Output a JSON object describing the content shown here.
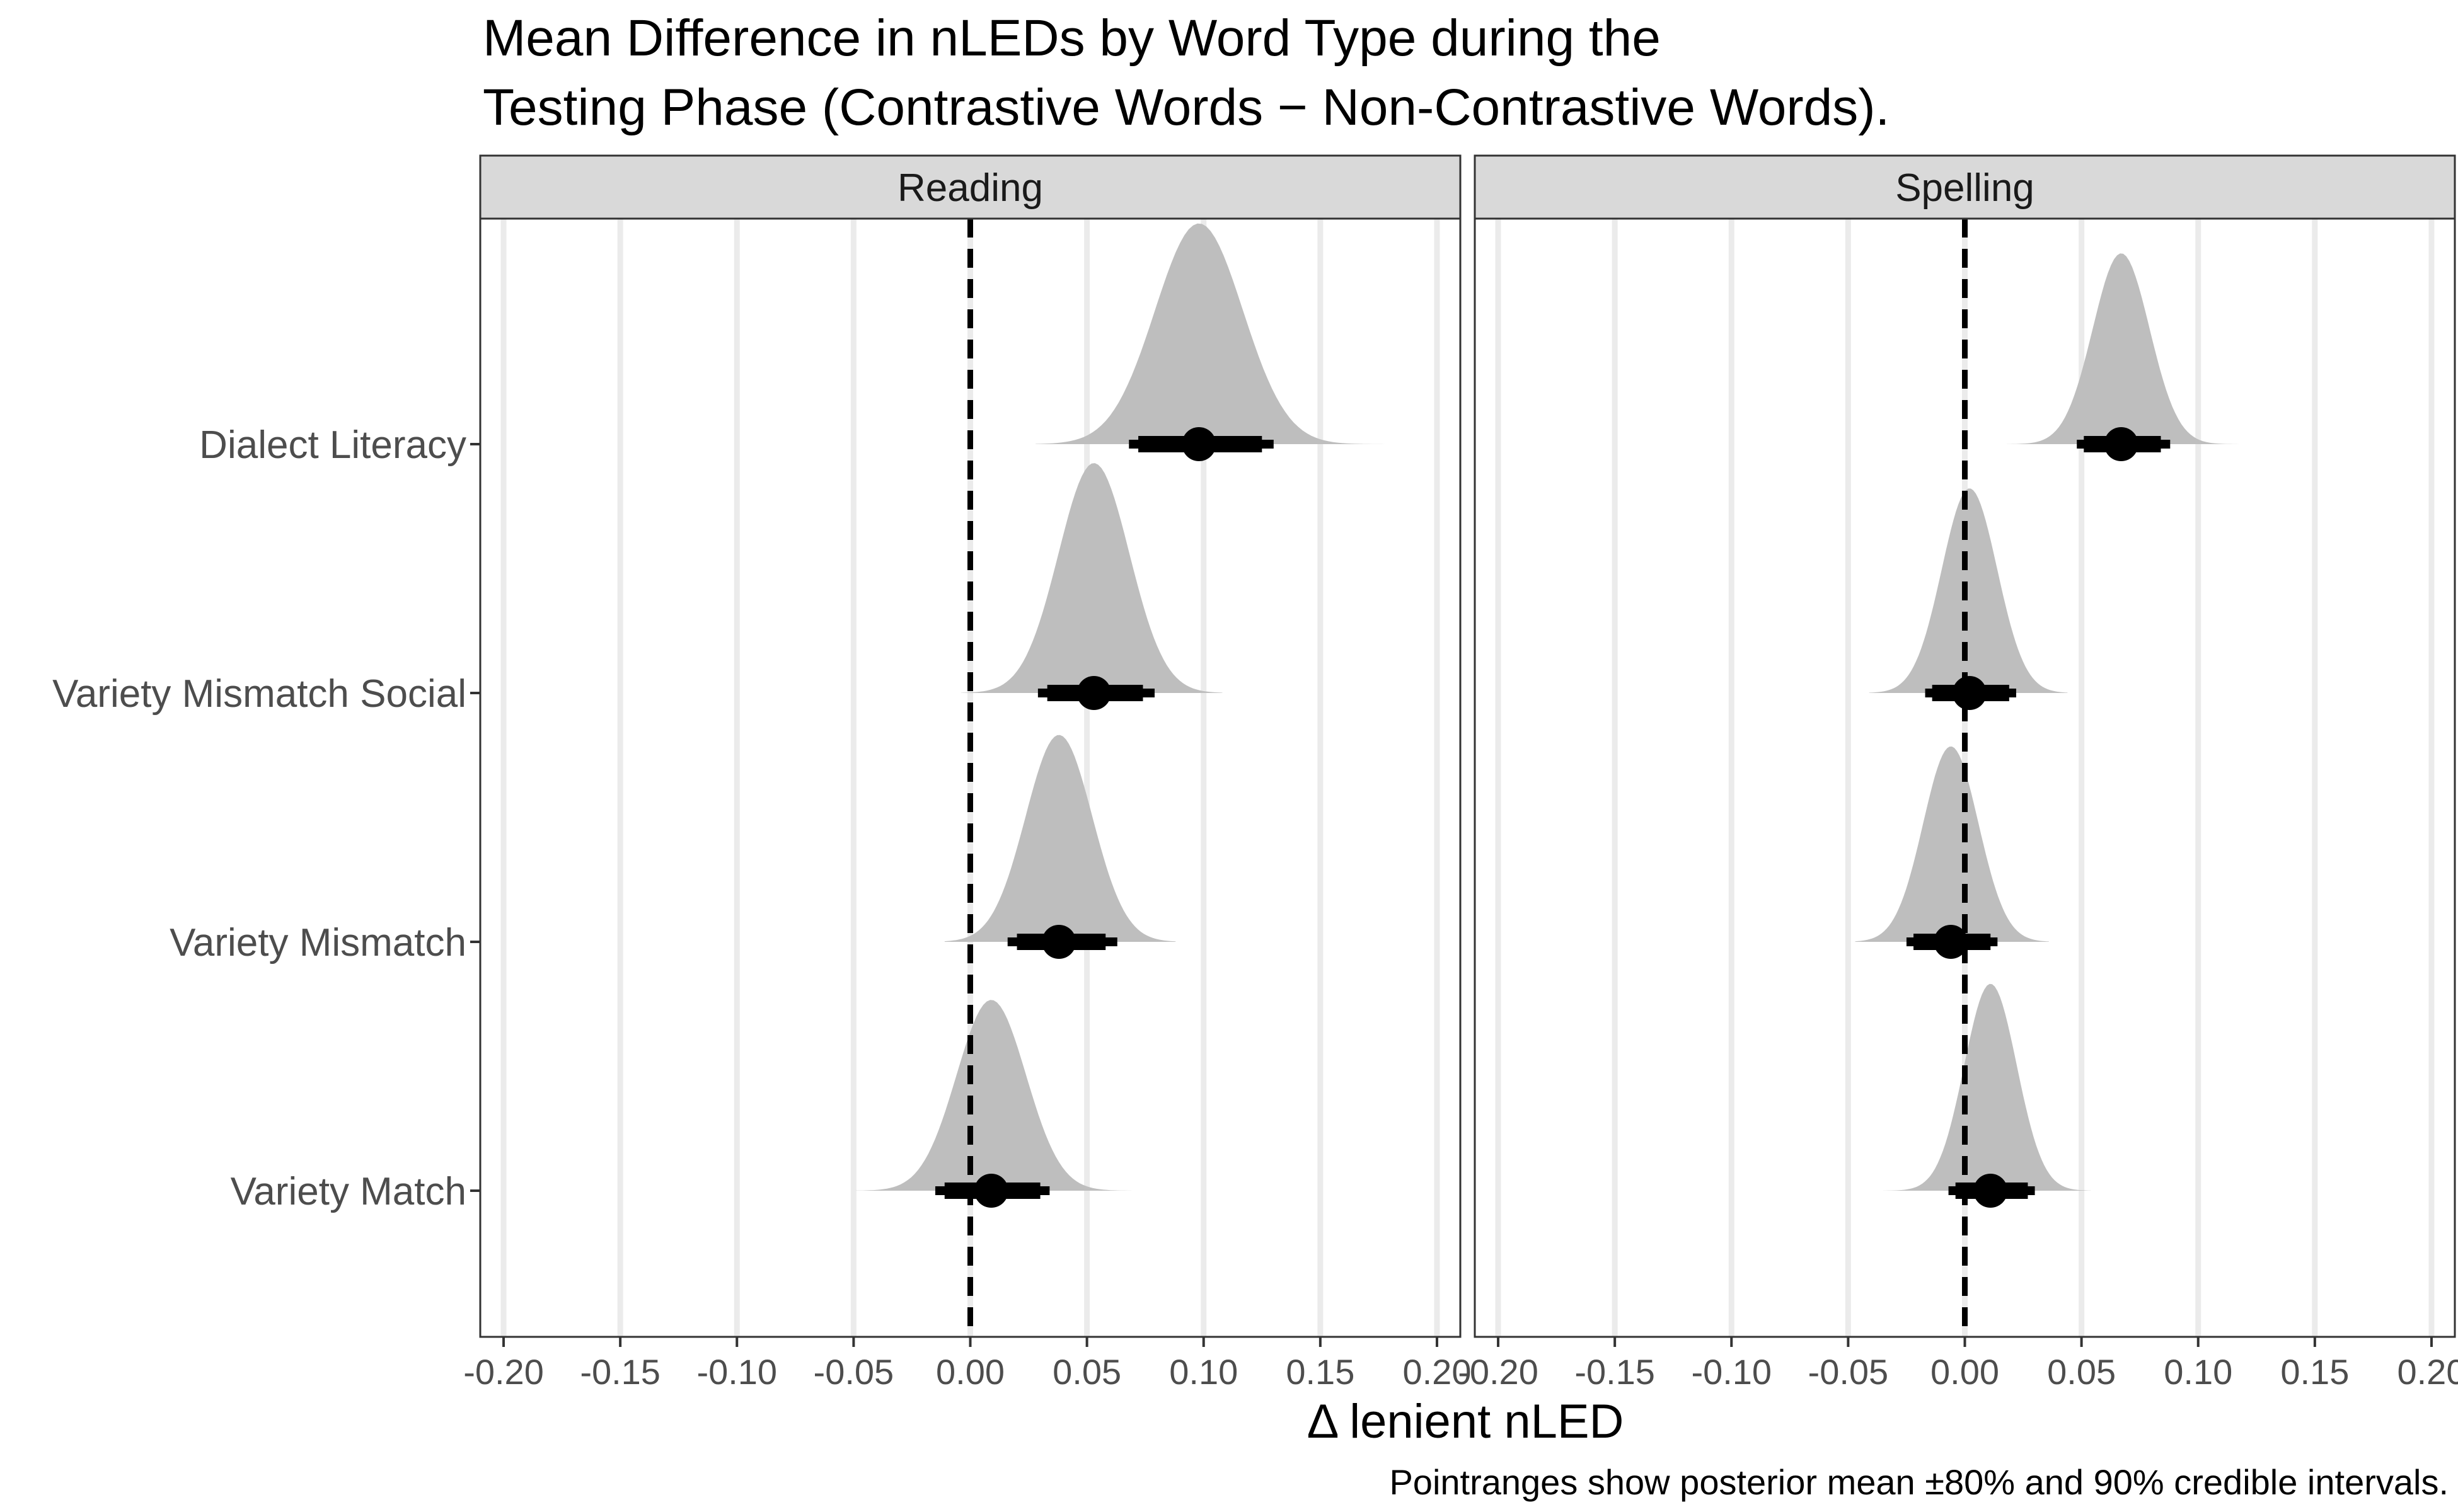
{
  "chart_data": {
    "type": "density",
    "title": [
      "Mean Difference in nLEDs by Word Type during the",
      "Testing Phase (Contrastive Words − Non-Contrastive Words)."
    ],
    "xlabel": "Δ lenient nLED",
    "ylabel": "",
    "caption": "Pointranges show posterior mean ±80% and 90% credible intervals.",
    "xlim": [
      -0.21,
      0.21
    ],
    "x_ticks": [
      -0.2,
      -0.15,
      -0.1,
      -0.05,
      0.0,
      0.05,
      0.1,
      0.15,
      0.2
    ],
    "x_tick_labels": [
      "-0.20",
      "-0.15",
      "-0.10",
      "-0.05",
      "0.00",
      "0.05",
      "0.10",
      "0.15",
      "0.20"
    ],
    "reference_line": 0,
    "categories": [
      "Dialect Literacy",
      "Variety Mismatch Social",
      "Variety Mismatch",
      "Variety Match"
    ],
    "colors": {
      "density": "#bebebe",
      "point": "#000000",
      "strip": "#d9d9d9",
      "grid": "#ebebeb"
    },
    "panels": [
      {
        "name": "Reading",
        "series": [
          {
            "category": "Dialect Literacy",
            "mean": 0.098,
            "ci80": [
              0.072,
              0.125
            ],
            "ci90": [
              0.068,
              0.13
            ],
            "range": [
              0.028,
              0.178
            ],
            "peak": 0.96
          },
          {
            "category": "Variety Mismatch Social",
            "mean": 0.053,
            "ci80": [
              0.033,
              0.074
            ],
            "ci90": [
              0.029,
              0.079
            ],
            "range": [
              -0.004,
              0.108
            ],
            "peak": 1.0
          },
          {
            "category": "Variety Mismatch",
            "mean": 0.038,
            "ci80": [
              0.02,
              0.058
            ],
            "ci90": [
              0.016,
              0.063
            ],
            "range": [
              -0.011,
              0.088
            ],
            "peak": 0.9
          },
          {
            "category": "Variety Match",
            "mean": 0.009,
            "ci80": [
              -0.011,
              0.03
            ],
            "ci90": [
              -0.015,
              0.034
            ],
            "range": [
              -0.049,
              0.069
            ],
            "peak": 0.83
          }
        ]
      },
      {
        "name": "Spelling",
        "series": [
          {
            "category": "Dialect Literacy",
            "mean": 0.067,
            "ci80": [
              0.051,
              0.084
            ],
            "ci90": [
              0.048,
              0.088
            ],
            "range": [
              0.018,
              0.123
            ],
            "peak": 0.83
          },
          {
            "category": "Variety Mismatch Social",
            "mean": 0.002,
            "ci80": [
              -0.014,
              0.019
            ],
            "ci90": [
              -0.017,
              0.022
            ],
            "range": [
              -0.041,
              0.044
            ],
            "peak": 0.89
          },
          {
            "category": "Variety Mismatch",
            "mean": -0.006,
            "ci80": [
              -0.022,
              0.011
            ],
            "ci90": [
              -0.025,
              0.014
            ],
            "range": [
              -0.047,
              0.036
            ],
            "peak": 0.85
          },
          {
            "category": "Variety Match",
            "mean": 0.011,
            "ci80": [
              -0.004,
              0.027
            ],
            "ci90": [
              -0.007,
              0.03
            ],
            "range": [
              -0.035,
              0.054
            ],
            "peak": 0.9
          }
        ]
      }
    ]
  }
}
